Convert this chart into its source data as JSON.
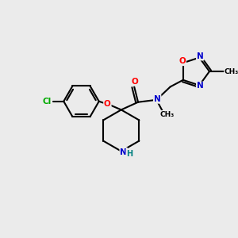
{
  "background_color": "#ebebeb",
  "bond_color": "#000000",
  "atom_colors": {
    "C": "#000000",
    "N": "#0000cc",
    "O": "#ff0000",
    "Cl": "#00aa00",
    "H": "#008080"
  },
  "figsize": [
    3.0,
    3.0
  ],
  "dpi": 100
}
